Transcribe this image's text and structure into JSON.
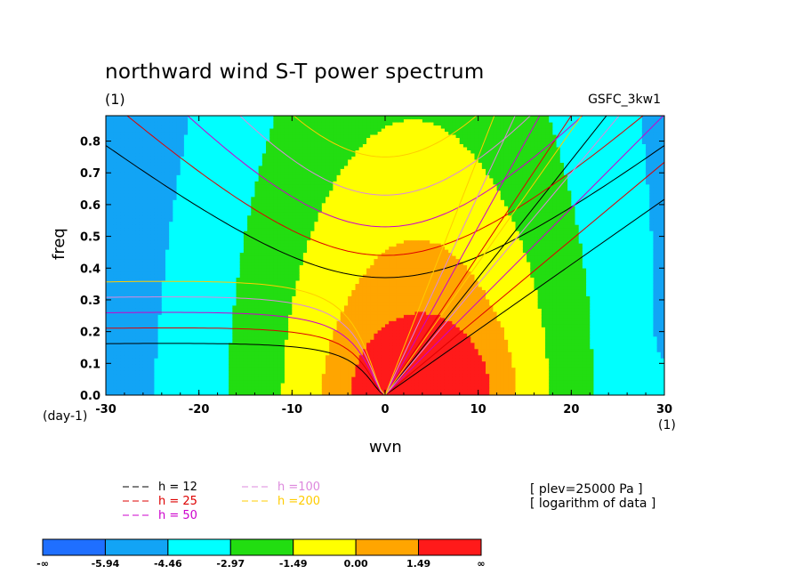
{
  "chart_data": {
    "type": "heatmap",
    "title": "northward wind S-T power spectrum",
    "subtitle": "(1)",
    "source_tag": "GSFC_3kw1",
    "xlabel": "wvn",
    "ylabel": "freq",
    "x_unit": "(1)",
    "y_unit": "(day-1)",
    "xlim": [
      -30,
      30
    ],
    "ylim": [
      0,
      0.88
    ],
    "x_ticks": [
      "-30",
      "-20",
      "-10",
      "0",
      "10",
      "20",
      "30"
    ],
    "y_ticks": [
      "0.0",
      "0.1",
      "0.2",
      "0.3",
      "0.4",
      "0.5",
      "0.6",
      "0.7",
      "0.8"
    ],
    "colorbar": {
      "levels": [
        "-∞",
        "-5.94",
        "-4.46",
        "-2.97",
        "-1.49",
        "0.00",
        "1.49",
        "∞"
      ],
      "colors": [
        "#1f6fff",
        "#12a4f5",
        "#00ffff",
        "#22dd11",
        "#ffff00",
        "#ffa500",
        "#ff1a1a"
      ]
    },
    "dispersion_curves": [
      {
        "name": "h = 12",
        "color": "#000000",
        "minimum_freq": 0.37
      },
      {
        "name": "h = 25",
        "color": "#dd0000",
        "minimum_freq": 0.44
      },
      {
        "name": "h = 50",
        "color": "#cc00cc",
        "minimum_freq": 0.53
      },
      {
        "name": "h =100",
        "color": "#dd88dd",
        "minimum_freq": 0.63
      },
      {
        "name": "h =200",
        "color": "#ffcc00",
        "minimum_freq": 0.75
      }
    ],
    "notes": [
      "[ plev=25000 Pa ]",
      "[ logarithm of data ]"
    ]
  }
}
